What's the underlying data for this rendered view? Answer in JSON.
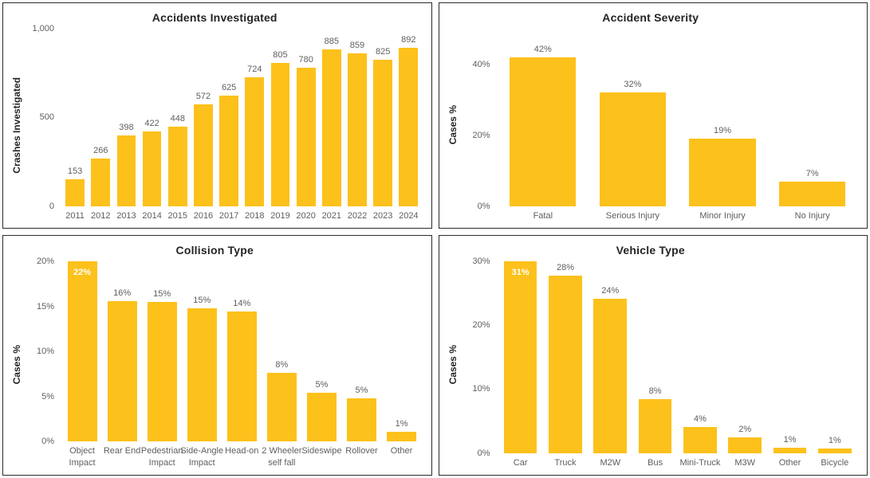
{
  "theme": {
    "bar_color": "#FDC11B",
    "panel_border_color": "#2B2B2B",
    "panel_background": "#FFFFFF",
    "page_background": "#FFFFFF",
    "title_color": "#252423",
    "y_axis_title_color": "#252423",
    "axis_label_color": "#605E5C",
    "value_label_color": "#605E5C",
    "inside_value_label_color": "#FFFFFF"
  },
  "chart_data": [
    {
      "id": "accidents-investigated",
      "type": "bar",
      "title": "Accidents Investigated",
      "ylabel": "Crashes Investigated",
      "xlabel": "",
      "grid": false,
      "legend": "none",
      "categories": [
        "2011",
        "2012",
        "2013",
        "2014",
        "2015",
        "2016",
        "2017",
        "2018",
        "2019",
        "2020",
        "2021",
        "2022",
        "2023",
        "2024"
      ],
      "values": [
        153,
        266,
        398,
        422,
        448,
        572,
        625,
        724,
        805,
        780,
        885,
        859,
        825,
        892
      ],
      "labels": [
        "153",
        "266",
        "398",
        "422",
        "448",
        "572",
        "625",
        "724",
        "805",
        "780",
        "885",
        "859",
        "825",
        "892"
      ],
      "ylim": [
        0,
        1000
      ],
      "yticks": [
        {
          "value": 0,
          "label": "0"
        },
        {
          "value": 500,
          "label": "500"
        },
        {
          "value": 1000,
          "label": "1,000"
        }
      ],
      "label_inside_indices": []
    },
    {
      "id": "accident-severity",
      "type": "bar",
      "title": "Accident Severity",
      "ylabel": "Cases %",
      "xlabel": "",
      "grid": false,
      "legend": "none",
      "categories": [
        "Fatal",
        "Serious Injury",
        "Minor Injury",
        "No Injury"
      ],
      "values": [
        42,
        32,
        19,
        7
      ],
      "labels": [
        "42%",
        "32%",
        "19%",
        "7%"
      ],
      "ylim": [
        0,
        50
      ],
      "yticks": [
        {
          "value": 0,
          "label": "0%"
        },
        {
          "value": 20,
          "label": "20%"
        },
        {
          "value": 40,
          "label": "40%"
        }
      ],
      "label_inside_indices": []
    },
    {
      "id": "collision-type",
      "type": "bar",
      "title": "Collision Type",
      "ylabel": "Cases %",
      "xlabel": "",
      "grid": false,
      "legend": "none",
      "categories": [
        "Object Impact",
        "Rear End",
        "Pedestrian Impact",
        "Side-Angle Impact",
        "Head-on",
        "2 Wheeler self fall",
        "Sideswipe",
        "Rollover",
        "Other"
      ],
      "values": [
        22,
        15.6,
        15.5,
        14.8,
        14.4,
        7.6,
        5.4,
        4.8,
        1.1
      ],
      "labels": [
        "22%",
        "16%",
        "15%",
        "15%",
        "14%",
        "8%",
        "5%",
        "5%",
        "1%"
      ],
      "ylim": [
        0,
        20
      ],
      "yticks": [
        {
          "value": 0,
          "label": "0%"
        },
        {
          "value": 5,
          "label": "5%"
        },
        {
          "value": 10,
          "label": "10%"
        },
        {
          "value": 15,
          "label": "15%"
        },
        {
          "value": 20,
          "label": "20%"
        }
      ],
      "label_inside_indices": [
        0
      ]
    },
    {
      "id": "vehicle-type",
      "type": "bar",
      "title": "Vehicle Type",
      "ylabel": "Cases %",
      "xlabel": "",
      "grid": false,
      "legend": "none",
      "categories": [
        "Car",
        "Truck",
        "M2W",
        "Bus",
        "Mini-Truck",
        "M3W",
        "Other",
        "Bicycle"
      ],
      "values": [
        31,
        27.8,
        24.1,
        8.5,
        4.1,
        2.4,
        0.8,
        0.7
      ],
      "labels": [
        "31%",
        "28%",
        "24%",
        "8%",
        "4%",
        "2%",
        "1%",
        "1%"
      ],
      "ylim": [
        0,
        30
      ],
      "yticks": [
        {
          "value": 0,
          "label": "0%"
        },
        {
          "value": 10,
          "label": "10%"
        },
        {
          "value": 20,
          "label": "20%"
        },
        {
          "value": 30,
          "label": "30%"
        }
      ],
      "label_inside_indices": [
        0
      ]
    }
  ]
}
